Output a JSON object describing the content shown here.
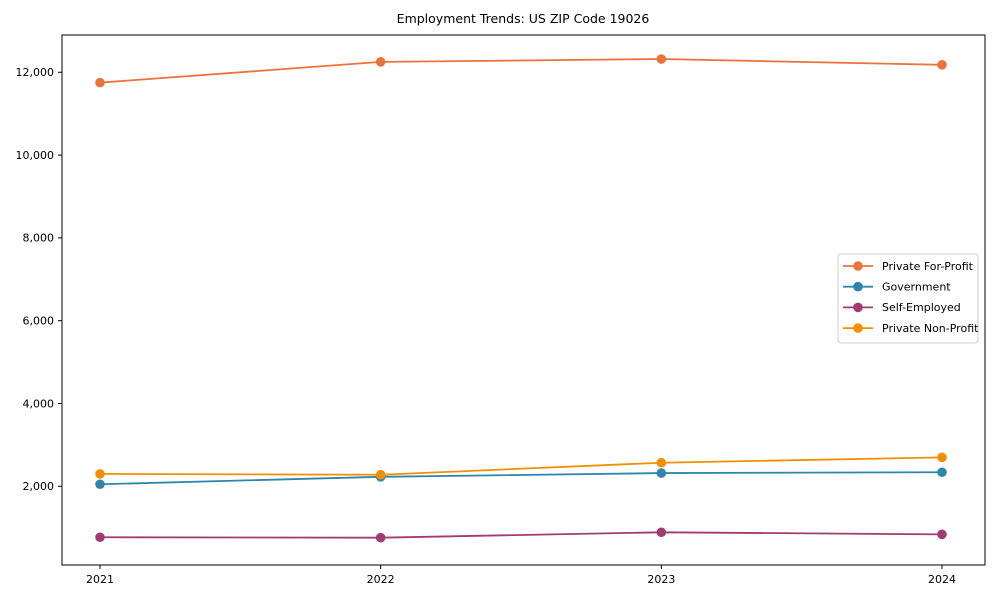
{
  "chart_data": {
    "type": "line",
    "title": "Employment Trends: US ZIP Code 19026",
    "categories": [
      "2021",
      "2022",
      "2023",
      "2024"
    ],
    "series": [
      {
        "name": "Private For-Profit",
        "color": "#E8743B",
        "values": [
          11750,
          12250,
          12320,
          12180
        ]
      },
      {
        "name": "Government",
        "color": "#2E86AB",
        "values": [
          2050,
          2230,
          2320,
          2340
        ]
      },
      {
        "name": "Self-Employed",
        "color": "#A23B72",
        "values": [
          770,
          760,
          890,
          840
        ]
      },
      {
        "name": "Private Non-Profit",
        "color": "#F18F01",
        "values": [
          2300,
          2280,
          2570,
          2700
        ]
      }
    ],
    "xlabel": "",
    "ylabel": "",
    "ylim": [
      100,
      12900
    ],
    "yticks": [
      2000,
      4000,
      6000,
      8000,
      10000,
      12000
    ],
    "ytick_labels": [
      "2,000",
      "4,000",
      "6,000",
      "8,000",
      "10,000",
      "12,000"
    ],
    "grid": false,
    "legend_position": "center-right",
    "frame_color": "#000000",
    "legend_border_color": "#cccccc"
  }
}
